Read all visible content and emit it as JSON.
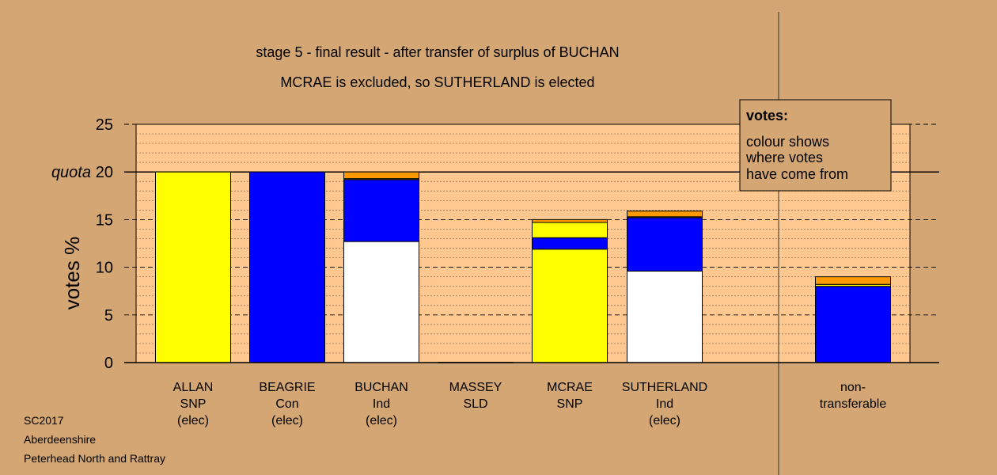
{
  "chart_data": {
    "type": "bar",
    "stacked": true,
    "title": "stage 5 - final result - after transfer of surplus of BUCHAN",
    "subtitle": "MCRAE is excluded, so SUTHERLAND is elected",
    "ylabel": "votes %",
    "ylim": [
      0,
      25
    ],
    "yticks": [
      0,
      5,
      10,
      15,
      20,
      25
    ],
    "quota_label": "quota",
    "quota": 20,
    "grid": true,
    "categories": [
      [
        "ALLAN",
        "SNP",
        "(elec)"
      ],
      [
        "BEAGRIE",
        "Con",
        "(elec)"
      ],
      [
        "BUCHAN",
        "Ind",
        "(elec)"
      ],
      [
        "MASSEY",
        "SLD"
      ],
      [
        "MCRAE",
        "SNP"
      ],
      [
        "SUTHERLAND",
        "Ind",
        "(elec)"
      ],
      [
        "non-",
        "transferable"
      ]
    ],
    "series": [
      {
        "color": "#ffffff",
        "values": [
          0,
          0,
          12.7,
          0,
          0,
          9.6,
          0
        ]
      },
      {
        "color": "#ffff00",
        "values": [
          20.0,
          0,
          0,
          0,
          11.9,
          0,
          0
        ]
      },
      {
        "color": "#0000ff",
        "values": [
          0,
          20.0,
          6.5,
          0,
          1.2,
          5.6,
          8.0
        ]
      },
      {
        "color": "#ffff00",
        "values": [
          0,
          0,
          0.1,
          0,
          1.6,
          0.1,
          0.2
        ]
      },
      {
        "color": "#ff9900",
        "values": [
          0,
          0,
          0.7,
          0,
          0.3,
          0.6,
          0.8
        ]
      }
    ]
  },
  "legend": {
    "title": "votes:",
    "lines": [
      "colour shows",
      "where votes",
      "have come from"
    ],
    "position": "top-right"
  },
  "footer": [
    "SC2017",
    "Aberdeenshire",
    "Peterhead North and Rattray"
  ],
  "colors": {
    "background": "#d3a674",
    "plot_area": "#ffc890",
    "legend_box": "#d3a674"
  }
}
